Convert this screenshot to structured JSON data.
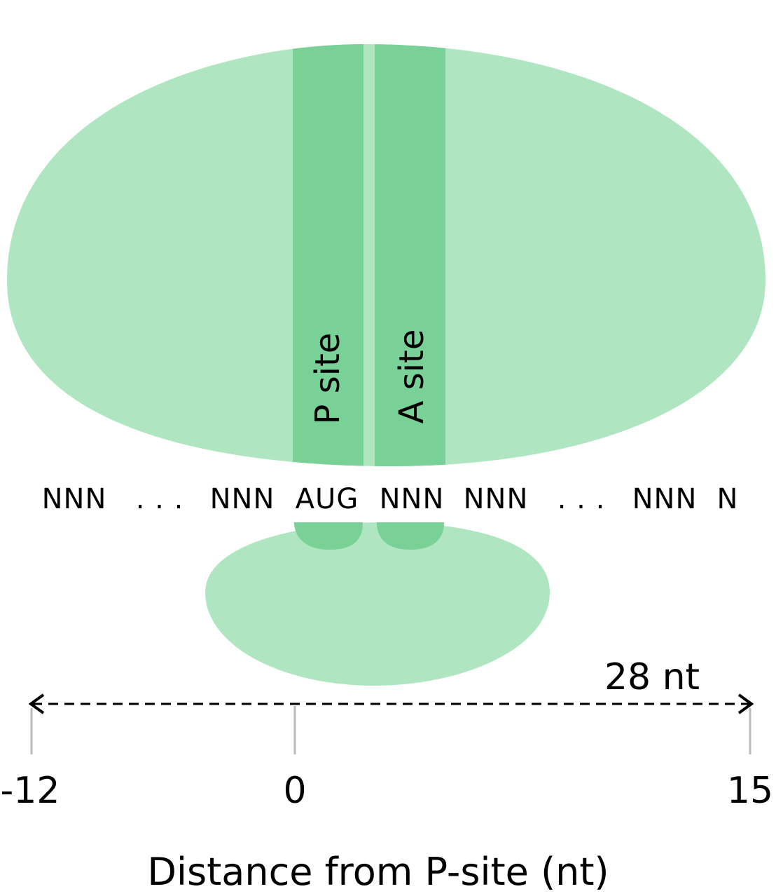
{
  "colors": {
    "ribosome_light": "#AFE6C1",
    "ribosome_dark": "#7AD197",
    "tick_gray": "#BBBBBB",
    "text": "#000000"
  },
  "sites": {
    "p_site": "P site",
    "a_site": "A site"
  },
  "codons": [
    "NNN",
    ". . .",
    "NNN",
    "AUG",
    "NNN",
    "NNN",
    ". . .",
    "NNN",
    "N"
  ],
  "span_label": "28 nt",
  "ticks": [
    "-12",
    "0",
    "15"
  ],
  "axis_label": "Distance from P-site (nt)"
}
